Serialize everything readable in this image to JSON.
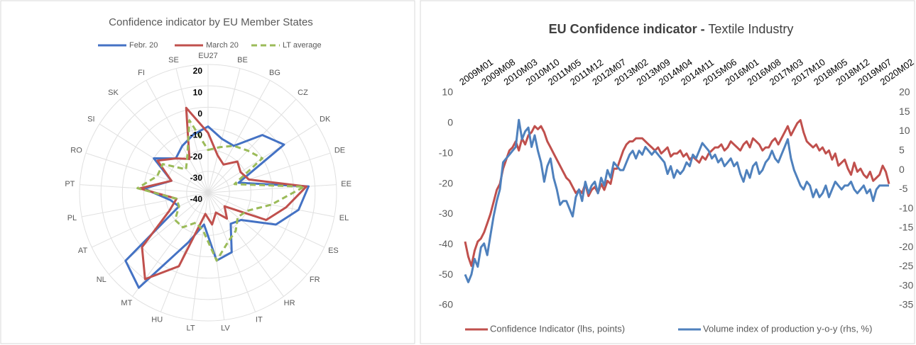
{
  "chart_data": [
    {
      "type": "radar",
      "title": "Confidence indicator by EU Member States",
      "categories": [
        "EU27",
        "BE",
        "BG",
        "CZ",
        "DK",
        "DE",
        "EE",
        "EL",
        "ES",
        "FR",
        "HR",
        "IT",
        "LV",
        "LT",
        "HU",
        "MT",
        "NL",
        "AT",
        "PL",
        "PT",
        "RO",
        "SI",
        "SK",
        "FI",
        "SE"
      ],
      "series": [
        {
          "name": "Febr. 20",
          "color": "#4472c4",
          "dash": false,
          "values": [
            -9,
            -14,
            -15,
            -3,
            2,
            -25,
            7,
            3,
            -5,
            -20,
            -22,
            -10,
            -8,
            -25,
            -15,
            15,
            10,
            -25,
            -22,
            -10,
            -22,
            -10,
            -18,
            -15,
            -12
          ]
        },
        {
          "name": "March 20",
          "color": "#c0504d",
          "dash": false,
          "values": [
            -12,
            -22,
            -25,
            -20,
            -22,
            -20,
            6,
            -3,
            -10,
            -30,
            -25,
            -30,
            -25,
            -30,
            -3,
            10,
            0,
            -20,
            -25,
            -8,
            -22,
            -12,
            -18,
            -22,
            1
          ]
        },
        {
          "name": "LT average",
          "color": "#9bbb59",
          "dash": true,
          "values": [
            -20,
            -18,
            -15,
            -13,
            -10,
            -27,
            5,
            -10,
            -20,
            -22,
            -18,
            -15,
            -8,
            -22,
            -25,
            -20,
            -20,
            -25,
            -25,
            -7,
            -15,
            -15,
            -25,
            -20,
            -5
          ]
        }
      ],
      "rlim": [
        -40,
        20
      ],
      "rticks": [
        -40,
        -30,
        -20,
        -10,
        0,
        10,
        20
      ],
      "legend": "top",
      "grid": true
    },
    {
      "type": "line",
      "title": "EU Confidence indicator -",
      "subtitle": "Textile Industry",
      "categories": [
        "2009M01",
        null,
        null,
        null,
        null,
        null,
        null,
        "2009M08",
        null,
        null,
        null,
        null,
        null,
        null,
        "2010M03",
        null,
        null,
        null,
        null,
        null,
        null,
        "2010M10",
        null,
        null,
        null,
        null,
        null,
        null,
        "2011M05",
        null,
        null,
        null,
        null,
        null,
        null,
        "2011M12",
        null,
        null,
        null,
        null,
        null,
        null,
        "2012M07",
        null,
        null,
        null,
        null,
        null,
        null,
        "2013M02",
        null,
        null,
        null,
        null,
        null,
        null,
        "2013M09",
        null,
        null,
        null,
        null,
        null,
        null,
        "2014M04",
        null,
        null,
        null,
        null,
        null,
        null,
        "2014M11",
        null,
        null,
        null,
        null,
        null,
        null,
        "2015M06",
        null,
        null,
        null,
        null,
        null,
        null,
        "2016M01",
        null,
        null,
        null,
        null,
        null,
        null,
        "2016M08",
        null,
        null,
        null,
        null,
        null,
        null,
        "2017M03",
        null,
        null,
        null,
        null,
        null,
        null,
        "2017M10",
        null,
        null,
        null,
        null,
        null,
        null,
        "2018M05",
        null,
        null,
        null,
        null,
        null,
        null,
        "2018M12",
        null,
        null,
        null,
        null,
        null,
        null,
        "2019M07",
        null,
        null,
        null,
        null,
        null,
        null,
        "2020M02",
        null
      ],
      "series": [
        {
          "name": "Confidence Indicator (lhs, points)",
          "color": "#c0504d",
          "axis": "y",
          "values": [
            -39,
            -44,
            -47,
            -42,
            -39,
            -38,
            -36,
            -33,
            -30,
            -26,
            -22,
            -20,
            -15,
            -12,
            -9,
            -8,
            -6,
            -9,
            -5,
            -7,
            -4,
            -3,
            -1,
            -2,
            -1,
            -3,
            -6,
            -8,
            -10,
            -12,
            -14,
            -16,
            -18,
            -19,
            -21,
            -23,
            -22,
            -23,
            -20,
            -24,
            -22,
            -21,
            -23,
            -20,
            -22,
            -19,
            -20,
            -15,
            -15,
            -12,
            -9,
            -7,
            -6,
            -6,
            -5,
            -5,
            -5,
            -6,
            -7,
            -8,
            -9,
            -8,
            -10,
            -9,
            -8,
            -11,
            -10,
            -10,
            -9,
            -11,
            -10,
            -12,
            -11,
            -12,
            -13,
            -11,
            -12,
            -10,
            -9,
            -8,
            -8,
            -7,
            -9,
            -8,
            -6,
            -7,
            -8,
            -9,
            -7,
            -6,
            -8,
            -5,
            -6,
            -7,
            -9,
            -8,
            -8,
            -6,
            -5,
            -7,
            -5,
            -3,
            -1,
            -4,
            -2,
            0,
            1,
            -3,
            -6,
            -7,
            -8,
            -7,
            -9,
            -8,
            -10,
            -9,
            -12,
            -10,
            -14,
            -13,
            -12,
            -15,
            -17,
            -13,
            -16,
            -15,
            -17,
            -18,
            -16,
            -19,
            -18,
            -17,
            -14,
            -16,
            -20
          ]
        },
        {
          "name": "Volume index of production y-o-y (rhs, %)",
          "color": "#4f81bd",
          "axis": "y2",
          "values": [
            -27,
            -29,
            -27,
            -23,
            -25,
            -20,
            -19,
            -22,
            -17,
            -12,
            -8,
            -5,
            2,
            3,
            4,
            5,
            6,
            13,
            8,
            10,
            11,
            6,
            9,
            5,
            2,
            -3,
            1,
            3,
            -2,
            -5,
            -9,
            -8,
            -8,
            -10,
            -12,
            -7,
            -5,
            -8,
            -3,
            -6,
            -4,
            -3,
            -6,
            -2,
            -4,
            0,
            -2,
            2,
            1,
            0,
            0,
            2,
            4,
            5,
            3,
            5,
            4,
            6,
            5,
            4,
            5,
            4,
            3,
            2,
            -1,
            1,
            -2,
            0,
            -1,
            0,
            2,
            1,
            4,
            3,
            5,
            7,
            6,
            5,
            3,
            4,
            2,
            3,
            1,
            2,
            3,
            1,
            2,
            -1,
            -3,
            0,
            -2,
            1,
            2,
            -1,
            0,
            2,
            3,
            5,
            3,
            2,
            4,
            6,
            8,
            3,
            0,
            -2,
            -4,
            -5,
            -3,
            -4,
            -7,
            -5,
            -7,
            -6,
            -4,
            -7,
            -5,
            -3,
            -4,
            -5,
            -4,
            -4,
            -3,
            -5,
            -6,
            -5,
            -4,
            -6,
            -5,
            -8,
            -5,
            -4,
            -4,
            -4,
            -4
          ]
        }
      ],
      "ylim": [
        -60,
        10
      ],
      "yticks": [
        -60,
        -50,
        -40,
        -30,
        -20,
        -10,
        0,
        10
      ],
      "y2lim": [
        -35,
        20
      ],
      "y2ticks": [
        -35,
        -30,
        -25,
        -20,
        -15,
        -10,
        -5,
        0,
        5,
        10,
        15,
        20
      ],
      "legend": "bottom",
      "grid": false
    }
  ]
}
